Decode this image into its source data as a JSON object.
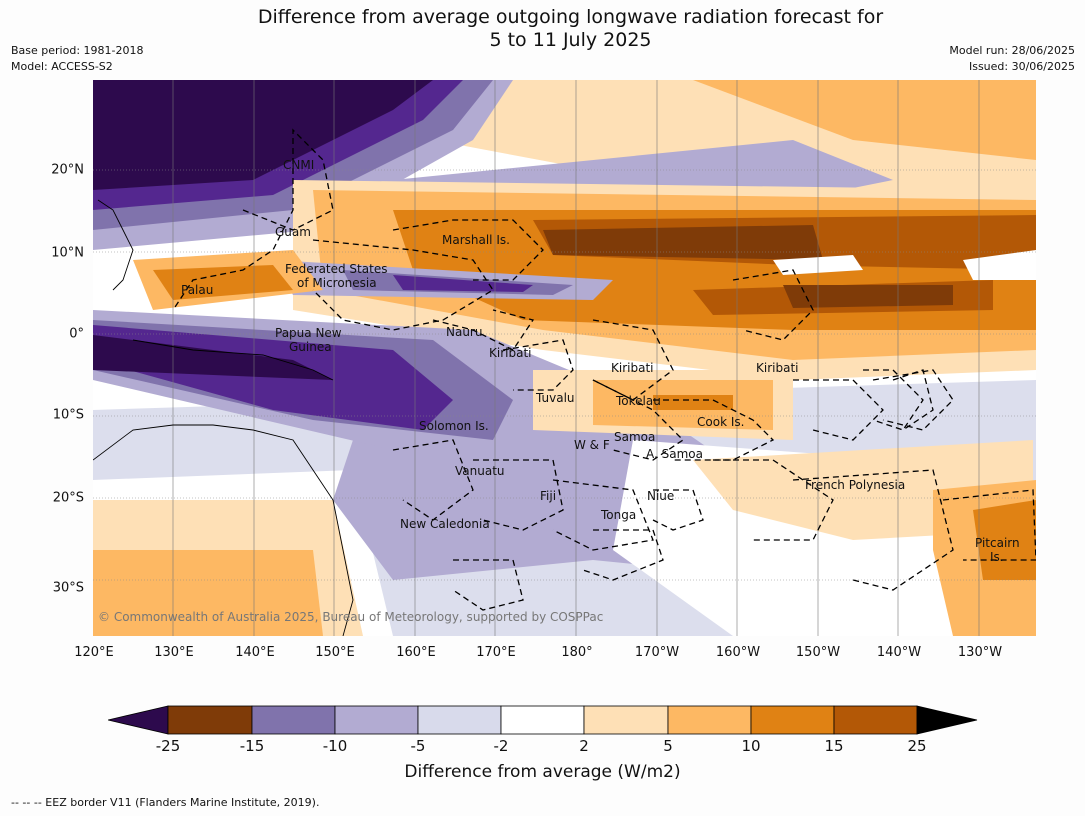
{
  "title_line1": "Difference from average outgoing longwave radiation forecast for",
  "title_line2": "5 to 11 July 2025",
  "base_period": "Base period: 1981-2018",
  "model": "Model: ACCESS-S2",
  "model_run": "Model run: 28/06/2025",
  "issued": "Issued: 30/06/2025",
  "lon_ticks": [
    "120°E",
    "130°E",
    "140°E",
    "150°E",
    "160°E",
    "170°E",
    "180°",
    "170°W",
    "160°W",
    "150°W",
    "140°W",
    "130°W"
  ],
  "lat_ticks": [
    "20°N",
    "10°N",
    "0°",
    "10°S",
    "20°S",
    "30°S"
  ],
  "places": {
    "cnmi": "CNMI",
    "guam": "Guam",
    "marshall": "Marshall Is.",
    "fsm1": "Federated States",
    "fsm2": "of Micronesia",
    "palau": "Palau",
    "png1": "Papua New",
    "png2": "Guinea",
    "nauru": "Nauru",
    "kiribati1": "Kiribati",
    "kiribati2": "Kiribati",
    "kiribati3": "Kiribati",
    "tuvalu": "Tuvalu",
    "tokelau": "Tokelau",
    "cook": "Cook Is.",
    "solomon": "Solomon Is.",
    "wf": "W & F",
    "samoa": "Samoa",
    "asamoa": "A. Samoa",
    "vanuatu": "Vanuatu",
    "fiji": "Fiji",
    "niue": "Niue",
    "tonga": "Tonga",
    "frpoly": "French Polynesia",
    "newcal": "New Caledonia",
    "pitcairn1": "Pitcairn",
    "pitcairn2": "Is."
  },
  "credit": "© Commonwealth of Australia 2025, Bureau of Meteorology, supported by COSPPac",
  "colorbar": {
    "ticks": [
      "-25",
      "-15",
      "-10",
      "-5",
      "-2",
      "2",
      "5",
      "10",
      "15",
      "25"
    ],
    "colors": [
      "#2d0a4d",
      "#54278f",
      "#8073ac",
      "#b2abd2",
      "#d8daeb",
      "#ffffff",
      "#fee0b6",
      "#fdb863",
      "#e08214",
      "#b35806",
      "#7f3b08"
    ],
    "label": "Difference from average (W/m2)"
  },
  "footnote": "--  --  -- EEZ border V11 (Flanders Marine Institute, 2019)."
}
